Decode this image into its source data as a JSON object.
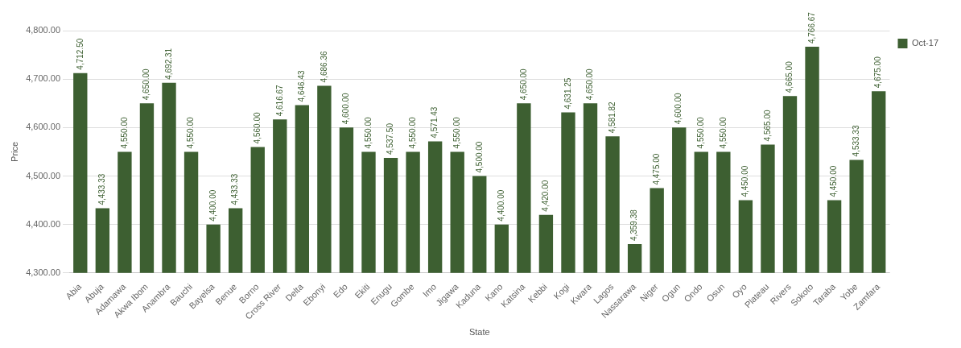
{
  "chart_data": {
    "type": "bar",
    "xlabel": "State",
    "ylabel": "Price",
    "categories": [
      "Abia",
      "Abuja",
      "Adamawa",
      "Akwa Ibom",
      "Anambra",
      "Bauchi",
      "Bayelsa",
      "Benue",
      "Borno",
      "Cross River",
      "Delta",
      "Ebonyi",
      "Edo",
      "Ekiti",
      "Enugu",
      "Gombe",
      "Imo",
      "Jigawa",
      "Kaduna",
      "Kano",
      "Katsina",
      "Kebbi",
      "Kogi",
      "Kwara",
      "Lagos",
      "Nassarawa",
      "Niger",
      "Ogun",
      "Ondo",
      "Osun",
      "Oyo",
      "Plateau",
      "Rivers",
      "Sokoto",
      "Taraba",
      "Yobe",
      "Zamfara"
    ],
    "series": [
      {
        "name": "Oct-17",
        "color": "#3d5f31",
        "values": [
          4712.5,
          4433.33,
          4550,
          4650,
          4692.31,
          4550,
          4400,
          4433.33,
          4560,
          4616.67,
          4646.43,
          4686.36,
          4600,
          4550,
          4537.5,
          4550,
          4571.43,
          4550,
          4500,
          4400,
          4650,
          4420,
          4631.25,
          4650,
          4581.82,
          4359.38,
          4475,
          4600,
          4550,
          4550,
          4450,
          4565,
          4665,
          4766.67,
          4450,
          4533.33,
          4675
        ],
        "value_labels": [
          "4,712.50",
          "4,433.33",
          "4,550.00",
          "4,650.00",
          "4,692.31",
          "4,550.00",
          "4,400.00",
          "4,433.33",
          "4,560.00",
          "4,616.67",
          "4,646.43",
          "4,686.36",
          "4,600.00",
          "4,550.00",
          "4,537.50",
          "4,550.00",
          "4,571.43",
          "4,550.00",
          "4,500.00",
          "4,400.00",
          "4,650.00",
          "4,420.00",
          "4,631.25",
          "4,650.00",
          "4,581.82",
          "4,359.38",
          "4,475.00",
          "4,600.00",
          "4,550.00",
          "4,550.00",
          "4,450.00",
          "4,565.00",
          "4,665.00",
          "4,766.67",
          "4,450.00",
          "4,533.33",
          "4,675.00"
        ]
      }
    ],
    "ylim": [
      4300,
      4800
    ],
    "yticks": [
      {
        "value": 4300,
        "label": "4,300.00"
      },
      {
        "value": 4400,
        "label": "4,400.00"
      },
      {
        "value": 4500,
        "label": "4,500.00"
      },
      {
        "value": 4600,
        "label": "4,600.00"
      },
      {
        "value": 4700,
        "label": "4,700.00"
      },
      {
        "value": 4800,
        "label": "4,800.00"
      }
    ],
    "grid": "y",
    "legend": "top right"
  }
}
